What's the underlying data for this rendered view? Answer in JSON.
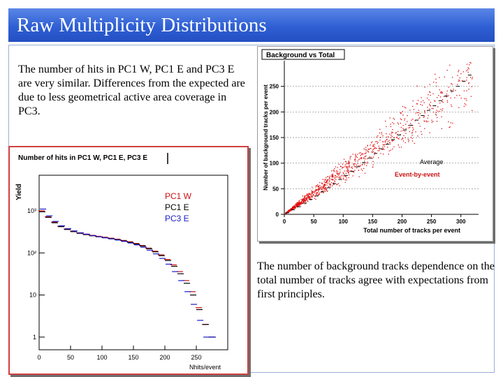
{
  "slide": {
    "title": "Raw Multiplicity Distributions",
    "text_top": "The number of hits in PC1 W, PC1 E and PC3 E are very similar. Differences from the expected are due to less geometrical active area coverage in PC3.",
    "text_bottom": "The number of background tracks dependence on the total number of tracks agree with expectations from first principles."
  },
  "colors": {
    "title_bar": "#2f5fd4",
    "pc1w": "#cc1111",
    "pc1e": "#000000",
    "pc3e": "#1a1acc",
    "scatter": "#e01010",
    "average": "#000000"
  },
  "chart_data": [
    {
      "type": "line",
      "title": "Number of hits in PC1 W, PC1 E, PC3 E",
      "xlabel": "Nhits/event",
      "ylabel": "Yield",
      "xlim": [
        0,
        300
      ],
      "ylim": [
        0.5,
        7000
      ],
      "log_y": true,
      "x_ticks": [
        0,
        50,
        100,
        150,
        200,
        250
      ],
      "y_ticks": [
        {
          "value": 1,
          "label": "1"
        },
        {
          "value": 10,
          "label": "10"
        },
        {
          "value": 100,
          "label": "10²"
        },
        {
          "value": 1000,
          "label": "10³"
        }
      ],
      "legend_position": "top-right",
      "x": [
        5,
        15,
        25,
        35,
        45,
        55,
        65,
        75,
        85,
        95,
        105,
        115,
        125,
        135,
        145,
        155,
        165,
        175,
        185,
        195,
        205,
        215,
        225,
        235,
        245,
        255,
        265,
        275
      ],
      "series": [
        {
          "name": "PC1 W",
          "color": "#cc1111",
          "values": [
            1000,
            720,
            540,
            430,
            370,
            330,
            300,
            280,
            262,
            248,
            236,
            224,
            212,
            198,
            184,
            168,
            150,
            130,
            110,
            90,
            70,
            52,
            36,
            22,
            12,
            5,
            2,
            1
          ]
        },
        {
          "name": "PC1 E",
          "color": "#000000",
          "values": [
            950,
            700,
            520,
            420,
            360,
            320,
            292,
            272,
            255,
            242,
            230,
            218,
            206,
            192,
            178,
            162,
            145,
            126,
            106,
            86,
            66,
            48,
            32,
            19,
            10,
            4.5,
            2,
            1
          ]
        },
        {
          "name": "PC3 E",
          "color": "#1a1acc",
          "values": [
            1100,
            760,
            560,
            440,
            375,
            332,
            300,
            278,
            258,
            242,
            228,
            215,
            202,
            188,
            172,
            155,
            136,
            116,
            95,
            74,
            54,
            36,
            22,
            12,
            6,
            2.5,
            1,
            1
          ]
        }
      ]
    },
    {
      "type": "scatter",
      "title": "Background vs Total",
      "xlabel": "Total number of tracks per event",
      "ylabel": "Number of background tracks per event",
      "xlim": [
        0,
        330
      ],
      "ylim": [
        0,
        300
      ],
      "x_ticks": [
        0,
        50,
        100,
        150,
        200,
        250,
        300
      ],
      "y_ticks": [
        0,
        50,
        100,
        150,
        200,
        250
      ],
      "grid": "horizontal-dashed",
      "annotations": [
        {
          "text": "Average",
          "color": "#000000"
        },
        {
          "text": "Event-by-event",
          "color": "#cc1111"
        }
      ],
      "series": [
        {
          "name": "Average",
          "color": "#000000",
          "x": [
            5,
            15,
            25,
            35,
            45,
            55,
            65,
            75,
            85,
            95,
            105,
            115,
            125,
            135,
            145,
            155,
            165,
            175,
            185,
            195,
            205,
            215,
            225,
            235,
            245,
            255,
            265,
            275,
            285,
            295,
            305,
            315
          ],
          "y": [
            3,
            9,
            15,
            22,
            29,
            36,
            44,
            52,
            60,
            68,
            76,
            84,
            93,
            101,
            110,
            119,
            128,
            137,
            146,
            155,
            165,
            174,
            184,
            193,
            203,
            212,
            222,
            231,
            241,
            250,
            260,
            272
          ]
        },
        {
          "name": "Event-by-event",
          "color": "#e01010",
          "model": {
            "slope": 0.84,
            "spread": 0.12,
            "n_points": 1200,
            "x_range": [
              2,
              320
            ]
          }
        }
      ]
    }
  ]
}
